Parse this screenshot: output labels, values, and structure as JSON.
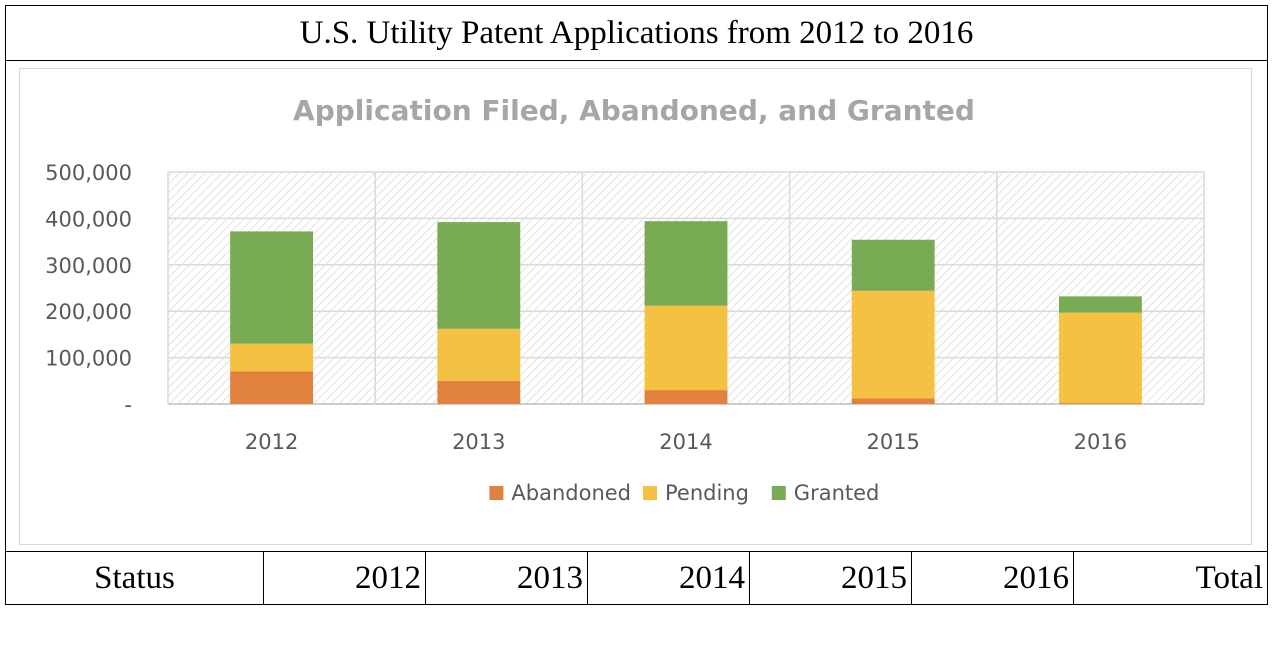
{
  "header": {
    "title": "U.S. Utility Patent Applications from 2012 to 2016"
  },
  "chart_data": {
    "type": "bar",
    "stacked": true,
    "title": "Application Filed, Abandoned, and Granted",
    "xlabel": "",
    "ylabel": "",
    "categories": [
      "2012",
      "2013",
      "2014",
      "2015",
      "2016"
    ],
    "series": [
      {
        "name": "Abandoned",
        "color": "#e0813e",
        "values": [
          70000,
          50000,
          30000,
          12000,
          2000
        ]
      },
      {
        "name": "Pending",
        "color": "#f4c142",
        "values": [
          60000,
          112000,
          182000,
          232000,
          195000
        ]
      },
      {
        "name": "Granted",
        "color": "#79ab55",
        "values": [
          242000,
          230000,
          182000,
          110000,
          35000
        ]
      }
    ],
    "ylim": [
      0,
      500000
    ],
    "yticks": [
      0,
      100000,
      200000,
      300000,
      400000,
      500000
    ],
    "ytick_labels": [
      "-",
      "100,000",
      "200,000",
      "300,000",
      "400,000",
      "500,000"
    ],
    "grid": true,
    "legend_position": "bottom"
  },
  "table": {
    "columns": [
      "Status",
      "2012",
      "2013",
      "2014",
      "2015",
      "2016",
      "Total"
    ]
  }
}
